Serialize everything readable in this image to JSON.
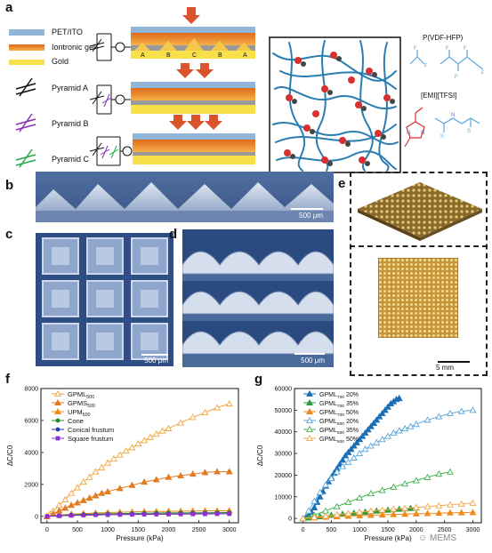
{
  "panels": {
    "a": "a",
    "b": "b",
    "c": "c",
    "d": "d",
    "e": "e",
    "f": "f",
    "g": "g"
  },
  "panel_a": {
    "legend": {
      "pet_ito": "PET/ITO",
      "gel": "Iontronic gel",
      "gold": "Gold",
      "pyr_a": "Pyramid A",
      "pyr_b": "Pyramid B",
      "pyr_c": "Pyramid C"
    },
    "device_letters": [
      "A",
      "B",
      "C",
      "B",
      "A"
    ],
    "chem": {
      "polymer": "P(VDF-HFP)",
      "ionic_liquid": "[EMI][TFSI]"
    },
    "colors": {
      "pet": "#8fb6d8",
      "gel": "#f08a24",
      "gold": "#f7e04a",
      "arrow": "#d9532c",
      "pyr_a": "#111111",
      "pyr_b": "#8b2fb5",
      "pyr_c": "#2aa84a"
    }
  },
  "scale_bars": {
    "b": "500 μm",
    "c": "500 μm",
    "d": "500 μm",
    "e": "5 mm"
  },
  "chart_data": [
    {
      "type": "line",
      "panel": "f",
      "xlabel": "Pressure (kPa)",
      "ylabel": "ΔC/C0",
      "xlim": [
        -100,
        3150
      ],
      "ylim": [
        -400,
        8000
      ],
      "xticks": [
        0,
        500,
        1000,
        1500,
        2000,
        2500,
        3000
      ],
      "yticks": [
        0,
        2000,
        4000,
        6000,
        8000
      ],
      "legend_position": "top-left",
      "series": [
        {
          "name": "GPML",
          "sub": "500",
          "color": "#f2a53a",
          "marker": "triangle-open",
          "x": [
            0,
            50,
            100,
            200,
            300,
            400,
            500,
            600,
            700,
            800,
            900,
            1000,
            1100,
            1200,
            1300,
            1400,
            1500,
            1600,
            1700,
            1800,
            1900,
            2000,
            2200,
            2400,
            2600,
            2800,
            3000
          ],
          "y": [
            0,
            150,
            320,
            700,
            1050,
            1450,
            1800,
            2150,
            2450,
            2800,
            3050,
            3350,
            3600,
            3850,
            4100,
            4300,
            4550,
            4750,
            4950,
            5150,
            5350,
            5500,
            5850,
            6200,
            6500,
            6800,
            7050
          ]
        },
        {
          "name": "GPMS",
          "sub": "500",
          "color": "#e37b22",
          "marker": "triangle",
          "x": [
            0,
            100,
            200,
            300,
            400,
            500,
            600,
            700,
            800,
            900,
            1000,
            1200,
            1400,
            1600,
            1800,
            2000,
            2200,
            2400,
            2600,
            2800,
            3000
          ],
          "y": [
            0,
            150,
            350,
            520,
            700,
            850,
            1000,
            1150,
            1300,
            1450,
            1550,
            1750,
            1950,
            2150,
            2300,
            2450,
            2550,
            2650,
            2750,
            2800,
            2800
          ]
        },
        {
          "name": "UPM",
          "sub": "500",
          "color": "#f08a1c",
          "marker": "triangle",
          "x": [
            0,
            200,
            400,
            600,
            800,
            1000,
            1200,
            1400,
            1600,
            1800,
            2000,
            2200,
            2400,
            2600,
            2800,
            3000
          ],
          "y": [
            0,
            80,
            140,
            180,
            210,
            240,
            260,
            280,
            300,
            310,
            320,
            330,
            340,
            350,
            350,
            360
          ]
        },
        {
          "name": "Cone",
          "sub": "",
          "color": "#1f8a2a",
          "marker": "circle",
          "x": [
            0,
            200,
            400,
            600,
            800,
            1000,
            1200,
            1400,
            1600,
            1800,
            2000,
            2200,
            2400,
            2600,
            2800,
            3000
          ],
          "y": [
            0,
            60,
            100,
            130,
            150,
            165,
            180,
            190,
            200,
            210,
            215,
            220,
            225,
            230,
            235,
            240
          ]
        },
        {
          "name": "Conical frustum",
          "sub": "",
          "color": "#2a3ea8",
          "marker": "circle",
          "x": [
            0,
            200,
            400,
            600,
            800,
            1000,
            1200,
            1400,
            1600,
            1800,
            2000,
            2200,
            2400,
            2600,
            2800,
            3000
          ],
          "y": [
            0,
            40,
            70,
            90,
            105,
            115,
            125,
            135,
            140,
            145,
            150,
            155,
            160,
            165,
            170,
            175
          ]
        },
        {
          "name": "Square frustum",
          "sub": "",
          "color": "#8b2fd0",
          "marker": "square",
          "x": [
            0,
            200,
            400,
            600,
            800,
            1000,
            1200,
            1400,
            1600,
            1800,
            2000,
            2200,
            2400,
            2600,
            2800,
            3000
          ],
          "y": [
            0,
            30,
            55,
            75,
            90,
            100,
            110,
            118,
            125,
            130,
            135,
            140,
            145,
            150,
            155,
            160
          ]
        }
      ]
    },
    {
      "type": "line",
      "panel": "g",
      "xlabel": "Pressure (kPa)",
      "ylabel": "ΔC/C0",
      "xlim": [
        -150,
        3150
      ],
      "ylim": [
        -2000,
        60000
      ],
      "xticks": [
        0,
        500,
        1000,
        1500,
        2000,
        2500,
        3000
      ],
      "yticks": [
        0,
        10000,
        20000,
        30000,
        40000,
        50000,
        60000
      ],
      "legend_position": "top-left",
      "series": [
        {
          "name": "GPML",
          "sub": "700",
          "suffix": " 20%",
          "color": "#1b6fb5",
          "marker": "triangle",
          "x": [
            0,
            50,
            100,
            150,
            200,
            250,
            300,
            350,
            400,
            450,
            500,
            550,
            600,
            650,
            700,
            750,
            800,
            850,
            900,
            950,
            1000,
            1050,
            1100,
            1150,
            1200,
            1250,
            1300,
            1350,
            1400,
            1450,
            1500,
            1550,
            1600,
            1650,
            1700
          ],
          "y": [
            0,
            500,
            1500,
            3000,
            5000,
            7500,
            10000,
            12500,
            15000,
            17000,
            19000,
            21000,
            23000,
            25000,
            27000,
            29000,
            30500,
            32000,
            33500,
            35000,
            36500,
            38000,
            39500,
            41000,
            42500,
            44000,
            45500,
            47000,
            48500,
            50000,
            51500,
            53000,
            54000,
            55000,
            55500
          ]
        },
        {
          "name": "GPML",
          "sub": "700",
          "suffix": " 35%",
          "color": "#2e9a3c",
          "marker": "triangle",
          "x": [
            0,
            100,
            200,
            300,
            400,
            500,
            600,
            700,
            800,
            900,
            1000,
            1100,
            1200,
            1300,
            1400,
            1500,
            1600,
            1700,
            1800,
            1900,
            2000
          ],
          "y": [
            0,
            300,
            600,
            900,
            1200,
            1500,
            1750,
            2000,
            2250,
            2500,
            2750,
            3000,
            3250,
            3500,
            3700,
            3900,
            4100,
            4300,
            4500,
            4700,
            4900
          ]
        },
        {
          "name": "GPML",
          "sub": "700",
          "suffix": " 50%",
          "color": "#f08a1c",
          "marker": "triangle",
          "x": [
            0,
            200,
            400,
            600,
            800,
            1000,
            1200,
            1400,
            1600,
            1800,
            2000,
            2200,
            2400,
            2600,
            2800,
            3000
          ],
          "y": [
            0,
            300,
            600,
            850,
            1100,
            1300,
            1500,
            1700,
            1850,
            2000,
            2150,
            2300,
            2450,
            2600,
            2700,
            2800
          ]
        },
        {
          "name": "GPML",
          "sub": "500",
          "suffix": " 20%",
          "color": "#5aa7dc",
          "marker": "triangle-open",
          "x": [
            0,
            100,
            200,
            300,
            400,
            500,
            600,
            700,
            800,
            900,
            1000,
            1100,
            1200,
            1300,
            1400,
            1500,
            1600,
            1700,
            1800,
            1900,
            2000,
            2200,
            2400,
            2600,
            2800,
            3000
          ],
          "y": [
            0,
            3500,
            8000,
            12000,
            15500,
            18500,
            21500,
            24000,
            26000,
            28000,
            30000,
            32000,
            33500,
            35000,
            36500,
            38000,
            39500,
            40500,
            41500,
            42500,
            43500,
            45500,
            47000,
            48500,
            49500,
            50000
          ]
        },
        {
          "name": "GPML",
          "sub": "500",
          "suffix": " 35%",
          "color": "#45b34f",
          "marker": "triangle-open",
          "x": [
            0,
            200,
            400,
            600,
            800,
            1000,
            1200,
            1400,
            1600,
            1800,
            2000,
            2200,
            2400,
            2600
          ],
          "y": [
            0,
            1500,
            3500,
            5500,
            7500,
            9500,
            11500,
            13000,
            14500,
            16000,
            17500,
            19000,
            20500,
            21500
          ]
        },
        {
          "name": "GPML",
          "sub": "500",
          "suffix": " 50%",
          "color": "#f5a94a",
          "marker": "triangle-open",
          "x": [
            0,
            200,
            400,
            600,
            800,
            1000,
            1200,
            1400,
            1600,
            1800,
            2000,
            2200,
            2400,
            2600,
            2800,
            3000
          ],
          "y": [
            0,
            500,
            1100,
            1700,
            2300,
            2900,
            3400,
            3900,
            4300,
            4700,
            5100,
            5500,
            5900,
            6300,
            6700,
            7100
          ]
        }
      ]
    }
  ],
  "watermark": "MEMS"
}
